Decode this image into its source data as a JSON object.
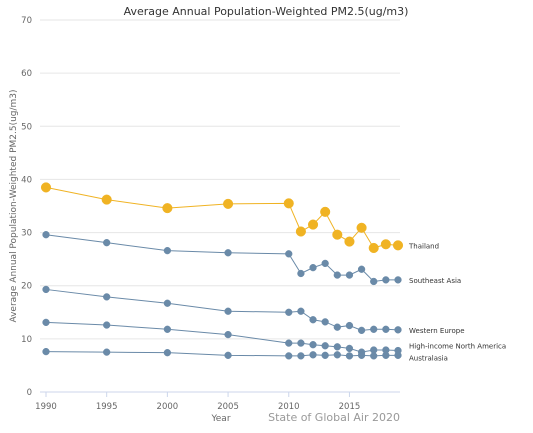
{
  "chart_data": {
    "type": "line",
    "title": "Average Annual Population-Weighted PM2.5(ug/m3)",
    "xlabel": "Year",
    "ylabel": "Average Annual Population-Weighted PM2.5(ug/m3)",
    "credit": "State of Global Air 2020",
    "xlim": [
      1990,
      2019
    ],
    "ylim": [
      0,
      70
    ],
    "x_ticks": [
      1990,
      1995,
      2000,
      2005,
      2010,
      2015
    ],
    "y_ticks": [
      0,
      10,
      20,
      30,
      40,
      50,
      60,
      70
    ],
    "grid": true,
    "x": [
      1990,
      1995,
      2000,
      2005,
      2010,
      2011,
      2012,
      2013,
      2014,
      2015,
      2016,
      2017,
      2018,
      2019
    ],
    "series": [
      {
        "name": "Thailand",
        "color": "#f0b323",
        "highlight": true,
        "values": [
          38.5,
          36.2,
          34.6,
          35.4,
          35.5,
          30.2,
          31.5,
          33.9,
          29.6,
          28.3,
          30.9,
          27.1,
          27.8,
          27.6
        ]
      },
      {
        "name": "Southeast Asia",
        "color": "#6a8aa8",
        "highlight": false,
        "values": [
          29.6,
          28.1,
          26.6,
          26.2,
          26.0,
          22.3,
          23.4,
          24.2,
          22.0,
          22.0,
          23.1,
          20.8,
          21.1,
          21.1
        ]
      },
      {
        "name": "Western Europe",
        "color": "#6a8aa8",
        "highlight": false,
        "values": [
          19.3,
          17.9,
          16.7,
          15.2,
          15.0,
          15.2,
          13.6,
          13.2,
          12.2,
          12.5,
          11.6,
          11.8,
          11.8,
          11.7
        ]
      },
      {
        "name": "High-income North America",
        "color": "#6a8aa8",
        "highlight": false,
        "values": [
          13.1,
          12.6,
          11.8,
          10.8,
          9.2,
          9.2,
          8.9,
          8.7,
          8.5,
          8.2,
          7.5,
          7.9,
          7.9,
          7.8
        ]
      },
      {
        "name": "Australasia",
        "color": "#6a8aa8",
        "highlight": false,
        "values": [
          7.6,
          7.5,
          7.4,
          6.9,
          6.8,
          6.8,
          7.0,
          6.9,
          7.0,
          6.8,
          6.9,
          6.8,
          6.9,
          6.9
        ]
      }
    ]
  }
}
